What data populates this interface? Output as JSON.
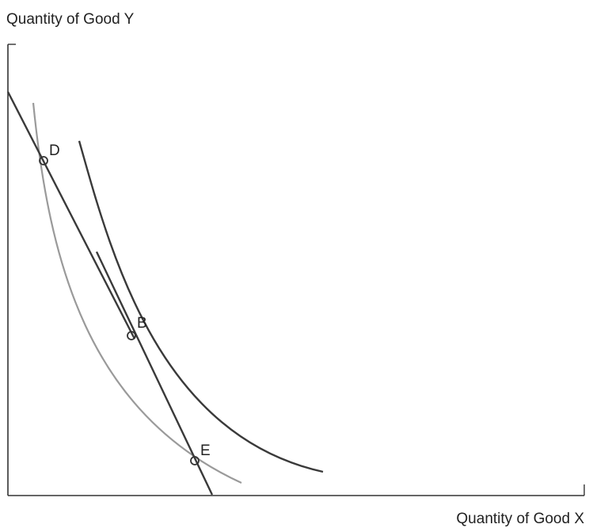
{
  "axes": {
    "y_label": "Quantity of Good Y",
    "x_label": "Quantity of Good X"
  },
  "points": {
    "d": "D",
    "b": "B",
    "e": "E"
  },
  "colors": {
    "ink": "#3a3a3a",
    "faint_curve": "#9a9a9a"
  }
}
